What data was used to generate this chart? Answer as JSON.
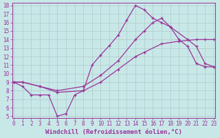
{
  "xlabel": "Windchill (Refroidissement éolien,°C)",
  "xlim": [
    0,
    23
  ],
  "ylim": [
    5,
    18
  ],
  "xticks": [
    0,
    1,
    2,
    3,
    4,
    5,
    6,
    7,
    8,
    9,
    10,
    11,
    12,
    13,
    14,
    15,
    16,
    17,
    18,
    19,
    20,
    21,
    22,
    23
  ],
  "yticks": [
    5,
    6,
    7,
    8,
    9,
    10,
    11,
    12,
    13,
    14,
    15,
    16,
    17,
    18
  ],
  "color": "#993399",
  "bg_color": "#c8e8e8",
  "grid_color": "#b0c8c8",
  "line1_x": [
    0,
    1,
    2,
    3,
    4,
    5,
    6,
    7,
    8,
    9,
    10,
    11,
    12,
    13,
    14,
    15,
    16,
    17,
    18,
    19,
    20,
    21,
    22,
    23
  ],
  "line1_y": [
    9.0,
    8.5,
    7.5,
    7.5,
    7.5,
    5.0,
    5.3,
    7.5,
    8.0,
    11.0,
    12.2,
    13.3,
    14.5,
    16.3,
    18.0,
    17.5,
    16.5,
    16.0,
    15.5,
    14.0,
    13.2,
    11.2,
    10.8,
    10.8
  ],
  "line2_x": [
    0,
    1,
    3,
    5,
    8,
    10,
    12,
    14,
    15,
    16,
    17,
    18,
    20,
    21,
    22,
    23
  ],
  "line2_y": [
    9.0,
    9.0,
    8.5,
    8.0,
    8.5,
    9.8,
    11.5,
    14.0,
    15.0,
    16.0,
    16.5,
    15.5,
    14.0,
    13.2,
    11.2,
    10.8
  ],
  "line3_x": [
    0,
    1,
    3,
    5,
    8,
    10,
    12,
    14,
    15,
    17,
    19,
    21,
    22,
    23
  ],
  "line3_y": [
    9.0,
    9.0,
    8.5,
    7.8,
    8.0,
    9.0,
    10.5,
    12.0,
    12.5,
    13.5,
    13.8,
    14.0,
    14.0,
    14.0
  ],
  "tick_size": 5.5,
  "xlabel_size": 6.5,
  "lw": 0.9,
  "ms": 3.5
}
